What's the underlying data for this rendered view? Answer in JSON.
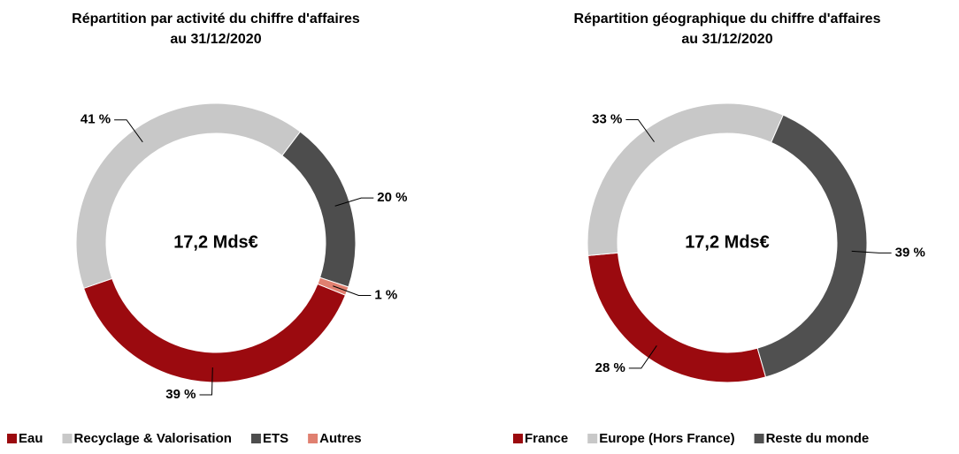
{
  "chart_data": [
    {
      "type": "pie",
      "title": "Répartition par activité du chiffre d'affaires",
      "subtitle": "au 31/12/2020",
      "center_label": "17,2 Mds€",
      "categories": [
        "Eau",
        "Recyclage & Valorisation",
        "ETS",
        "Autres"
      ],
      "values": [
        39,
        41,
        20,
        1
      ],
      "value_labels": [
        "39 %",
        "41 %",
        "20 %",
        "1 %"
      ],
      "colors": [
        "#9b0a0f",
        "#c8c8c8",
        "#4d4d4d",
        "#e08070"
      ],
      "legend": "bottom"
    },
    {
      "type": "pie",
      "title": "Répartition géographique du chiffre d'affaires",
      "subtitle": "au 31/12/2020",
      "center_label": "17,2 Mds€",
      "categories": [
        "France",
        "Europe (Hors France)",
        "Reste du monde"
      ],
      "values": [
        28,
        33,
        39
      ],
      "value_labels": [
        "28 %",
        "33 %",
        "39 %"
      ],
      "colors": [
        "#9b0a0f",
        "#c8c8c8",
        "#505050"
      ],
      "legend": "bottom"
    }
  ]
}
